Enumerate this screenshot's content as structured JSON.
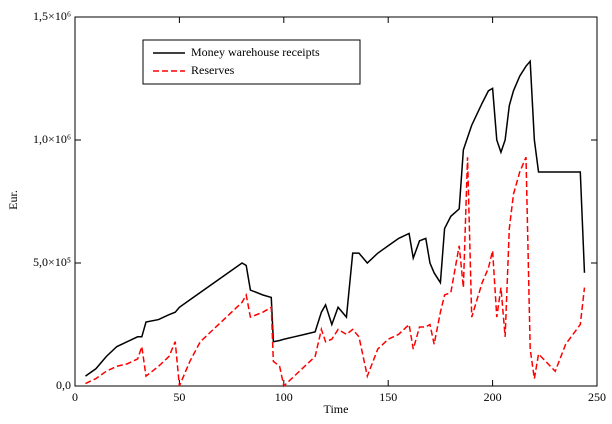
{
  "chart_data": {
    "type": "line",
    "xlabel": "Time",
    "ylabel": "Eur.",
    "xlim": [
      0,
      250
    ],
    "xticks": [
      0,
      50,
      100,
      150,
      200,
      250
    ],
    "ylim": [
      0,
      1500000
    ],
    "yticks": [
      {
        "value": 0,
        "label": "0,0"
      },
      {
        "value": 500000,
        "label": "5,0×10⁵"
      },
      {
        "value": 1000000,
        "label": "1,0×10⁶"
      },
      {
        "value": 1500000,
        "label": "1,5×10⁶"
      }
    ],
    "legend": "upper left",
    "x": [
      5,
      10,
      15,
      20,
      25,
      30,
      32,
      34,
      40,
      45,
      48,
      50,
      55,
      60,
      65,
      70,
      75,
      80,
      82,
      84,
      90,
      94,
      95,
      98,
      100,
      105,
      110,
      115,
      118,
      120,
      123,
      126,
      130,
      133,
      136,
      140,
      145,
      150,
      155,
      160,
      162,
      165,
      168,
      170,
      172,
      175,
      177,
      180,
      184,
      186,
      188,
      190,
      195,
      198,
      200,
      202,
      204,
      206,
      208,
      210,
      213,
      216,
      218,
      220,
      222,
      230,
      235,
      242,
      244
    ],
    "series": [
      {
        "name": "Money warehouse receipts",
        "color": "#000000",
        "dash": "solid",
        "values": [
          40000,
          70000,
          120000,
          160000,
          180000,
          200000,
          200000,
          260000,
          270000,
          290000,
          300000,
          320000,
          350000,
          380000,
          410000,
          440000,
          470000,
          500000,
          490000,
          390000,
          370000,
          360000,
          180000,
          185000,
          190000,
          200000,
          210000,
          220000,
          300000,
          330000,
          250000,
          320000,
          280000,
          540000,
          540000,
          500000,
          540000,
          570000,
          600000,
          620000,
          520000,
          590000,
          600000,
          500000,
          460000,
          420000,
          640000,
          690000,
          720000,
          960000,
          1010000,
          1060000,
          1150000,
          1200000,
          1210000,
          1000000,
          950000,
          1000000,
          1140000,
          1200000,
          1260000,
          1300000,
          1320000,
          1000000,
          870000,
          870000,
          870000,
          870000,
          460000
        ]
      },
      {
        "name": "Reserves",
        "color": "#ff0000",
        "dash": "dashed",
        "values": [
          10000,
          30000,
          60000,
          80000,
          90000,
          110000,
          160000,
          40000,
          80000,
          120000,
          180000,
          0,
          100000,
          180000,
          220000,
          260000,
          300000,
          340000,
          370000,
          280000,
          300000,
          320000,
          100000,
          80000,
          0,
          40000,
          80000,
          120000,
          230000,
          180000,
          190000,
          230000,
          210000,
          230000,
          200000,
          40000,
          150000,
          190000,
          210000,
          250000,
          150000,
          240000,
          240000,
          250000,
          170000,
          300000,
          370000,
          380000,
          570000,
          400000,
          930000,
          280000,
          420000,
          480000,
          550000,
          280000,
          400000,
          200000,
          640000,
          780000,
          870000,
          930000,
          150000,
          30000,
          130000,
          60000,
          170000,
          250000,
          400000
        ]
      }
    ]
  }
}
